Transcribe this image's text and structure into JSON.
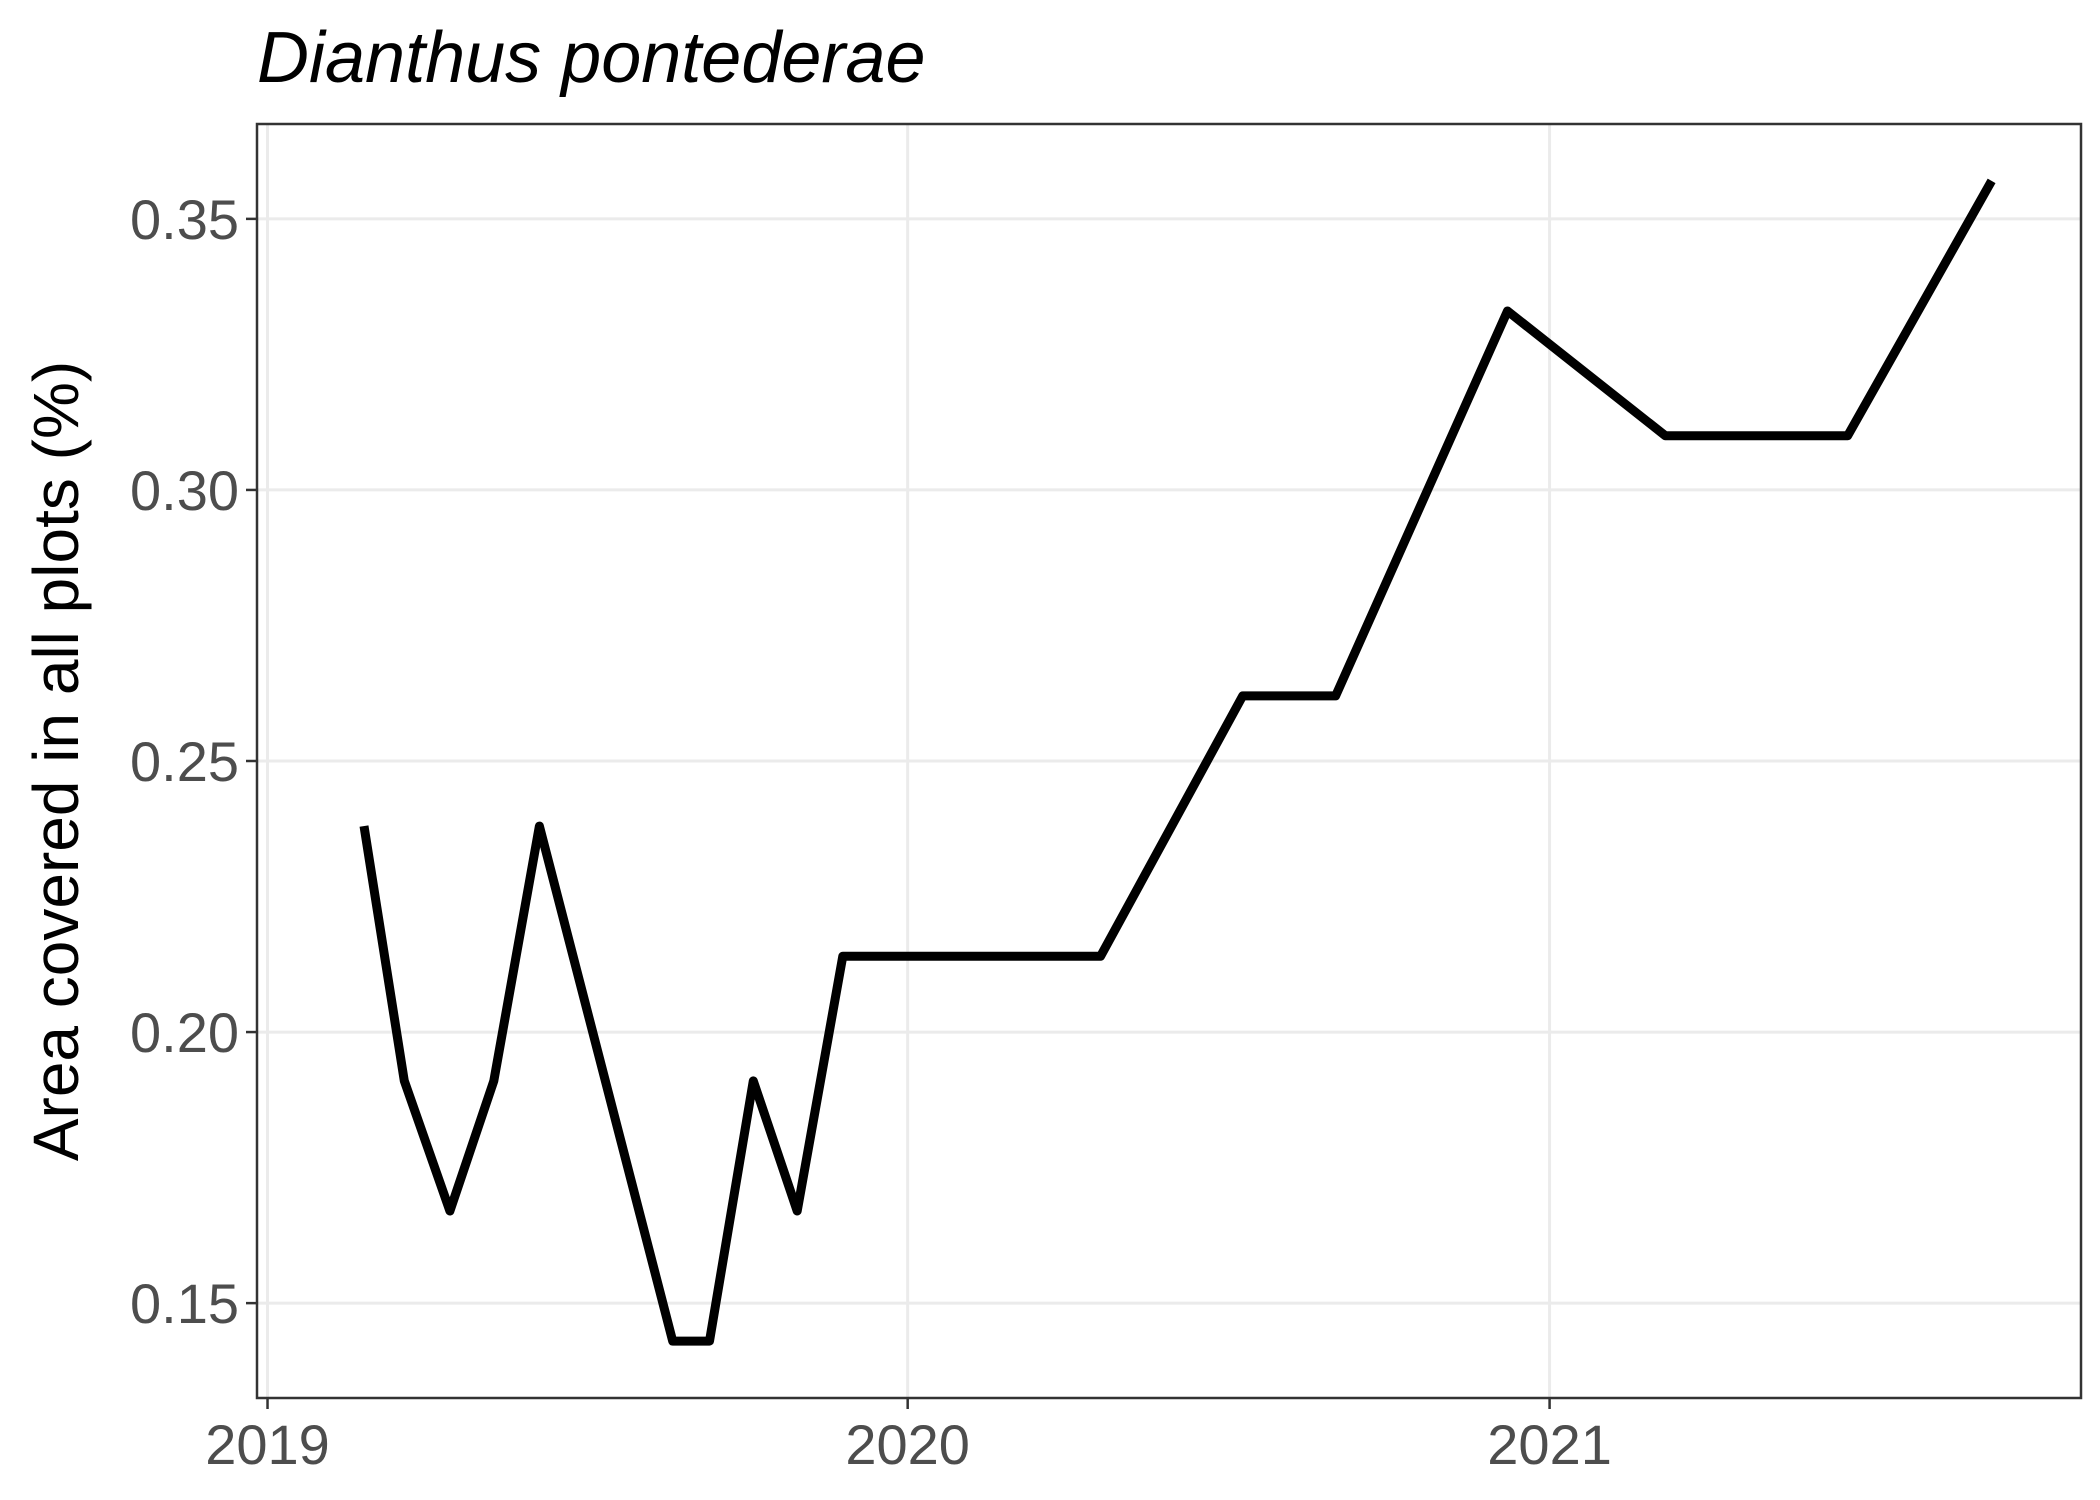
{
  "chart_data": {
    "type": "line",
    "title": "Dianthus pontederae",
    "xlabel": "",
    "ylabel": "Area covered in all plots (%)",
    "x_tick_labels": [
      "2019",
      "2020",
      "2021"
    ],
    "y_tick_labels": [
      "0.15",
      "0.20",
      "0.25",
      "0.30",
      "0.35"
    ],
    "y_ticks": [
      0.15,
      0.2,
      0.25,
      0.3,
      0.35
    ],
    "ylim": [
      0.1325,
      0.3675
    ],
    "xlim": [
      "2018-12-26",
      "2021-10-31"
    ],
    "x_ticks": [
      "2019-01-01",
      "2020-01-01",
      "2021-01-01"
    ],
    "grid": true,
    "series": [
      {
        "color": "#000000",
        "x": [
          "2019-02-25",
          "2019-03-20",
          "2019-04-15",
          "2019-05-10",
          "2019-06-05",
          "2019-08-20",
          "2019-09-10",
          "2019-10-05",
          "2019-10-30",
          "2019-11-25",
          "2020-04-20",
          "2020-07-10",
          "2020-09-01",
          "2020-12-08",
          "2021-03-08",
          "2021-06-20",
          "2021-09-10"
        ],
        "values": [
          0.238,
          0.191,
          0.167,
          0.191,
          0.238,
          0.143,
          0.143,
          0.191,
          0.167,
          0.214,
          0.214,
          0.262,
          0.262,
          0.333,
          0.31,
          0.31,
          0.357
        ]
      }
    ]
  }
}
